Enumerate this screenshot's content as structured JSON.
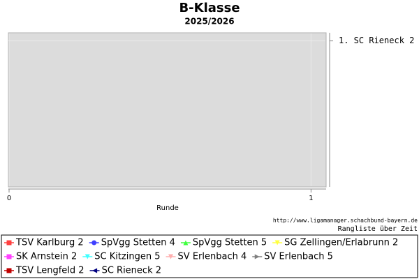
{
  "chart_data": {
    "type": "line",
    "title": "B-Klasse",
    "subtitle": "2025/2026",
    "x_label": "Runde",
    "x": [
      0,
      1
    ],
    "xlim": [
      0,
      1.05
    ],
    "xticks": [
      0,
      1
    ],
    "ylim": [
      0.5,
      10
    ],
    "y_inverted": true,
    "yticks": [
      {
        "value": 1,
        "label": "1. SC Rieneck 2"
      }
    ],
    "grid": true,
    "legend": "bottom",
    "source": "http://www.ligamanager.schachbund-bayern.de",
    "caption": "Rangliste über Zeit",
    "series": [
      {
        "name": "TSV Karlburg 2",
        "color": "#ff4040",
        "marker": "square",
        "values": [
          null,
          null
        ]
      },
      {
        "name": "SpVgg Stetten 4",
        "color": "#4040ff",
        "marker": "circle",
        "values": [
          null,
          null
        ]
      },
      {
        "name": "SpVgg Stetten 5",
        "color": "#40ff40",
        "marker": "triangle",
        "values": [
          null,
          null
        ]
      },
      {
        "name": "SG Zellingen/Erlabrunn 2",
        "color": "#ffff40",
        "marker": "triangle-down",
        "values": [
          null,
          null
        ]
      },
      {
        "name": "SK Arnstein 2",
        "color": "#ff40ff",
        "marker": "square",
        "values": [
          null,
          null
        ]
      },
      {
        "name": "SC Kitzingen 5",
        "color": "#40ffff",
        "marker": "triangle-down",
        "values": [
          null,
          null
        ]
      },
      {
        "name": "SV Erlenbach 4",
        "color": "#ffafaf",
        "marker": "triangle-down",
        "values": [
          null,
          null
        ]
      },
      {
        "name": "SV Erlenbach 5",
        "color": "#808080",
        "marker": "triangle-right",
        "values": [
          null,
          null
        ]
      },
      {
        "name": "TSV Lengfeld 2",
        "color": "#c00000",
        "marker": "square",
        "values": [
          null,
          null
        ]
      },
      {
        "name": "SC Rieneck 2",
        "color": "#000080",
        "marker": "triangle-left",
        "values": [
          null,
          null
        ]
      }
    ]
  }
}
